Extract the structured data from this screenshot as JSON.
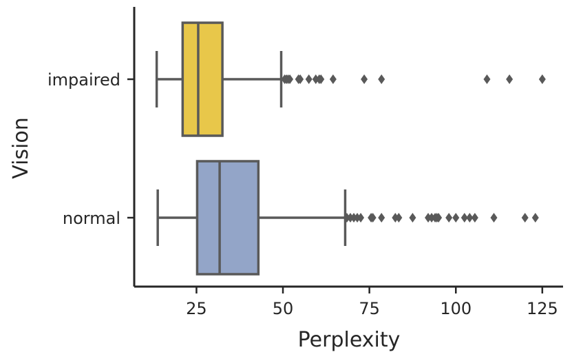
{
  "chart_data": {
    "type": "boxplot",
    "orientation": "horizontal",
    "xlabel": "Perplexity",
    "ylabel": "Vision",
    "xlim": [
      7,
      131
    ],
    "xticks": [
      25,
      50,
      75,
      100,
      125
    ],
    "grid": false,
    "categories": [
      "impaired",
      "normal"
    ],
    "boxes": [
      {
        "category": "impaired",
        "color": "#e8c74a",
        "whisker_low": 13.5,
        "q1": 21,
        "median": 25.5,
        "q3": 32.5,
        "whisker_high": 49.5,
        "outliers": [
          50.5,
          51,
          51.5,
          52,
          54.5,
          55,
          57.5,
          59.5,
          60.5,
          61,
          64.5,
          73.5,
          78.5,
          109,
          115.5,
          125
        ]
      },
      {
        "category": "normal",
        "color": "#93a5c8",
        "whisker_low": 13.8,
        "q1": 25.2,
        "median": 31.7,
        "q3": 42.9,
        "whisker_high": 68,
        "outliers": [
          68.5,
          69.5,
          70.5,
          71.5,
          72.5,
          75.5,
          76,
          78.5,
          82.5,
          83.5,
          87.5,
          92,
          93,
          94,
          94.5,
          95,
          98,
          100,
          102.5,
          104,
          105.5,
          111,
          120,
          123
        ]
      }
    ],
    "line_color": "#595959"
  }
}
